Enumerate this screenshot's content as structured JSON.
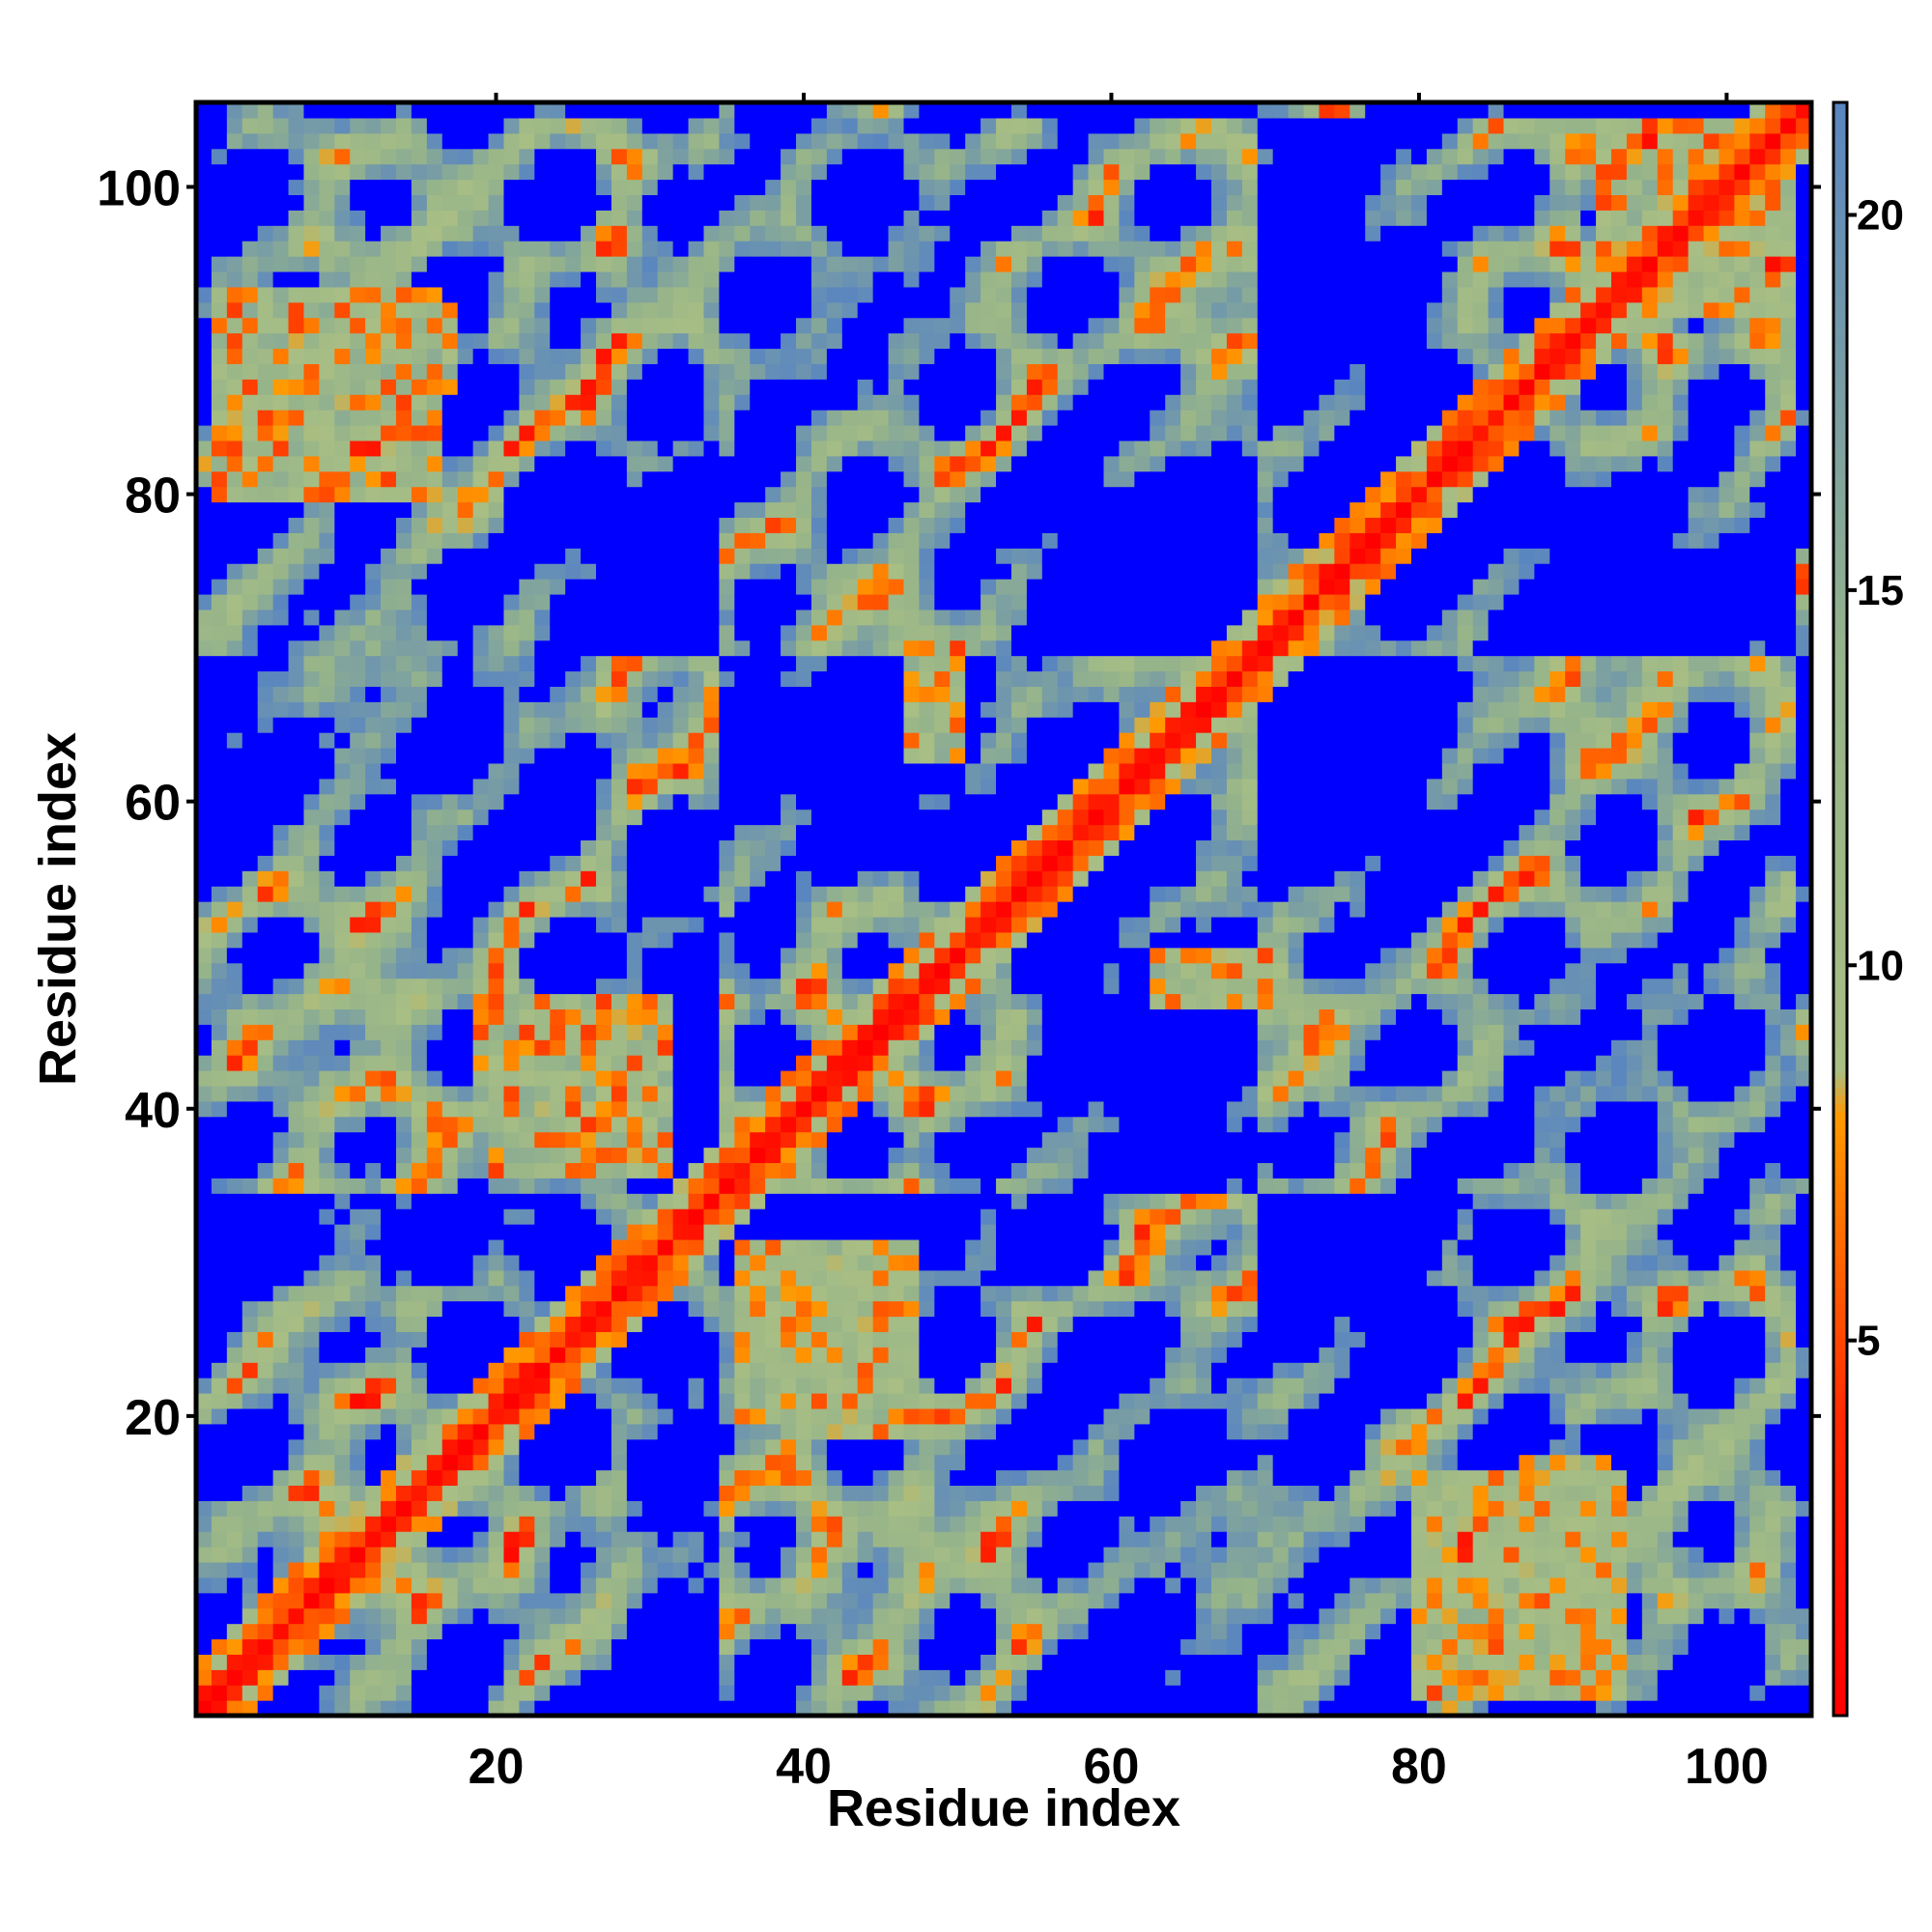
{
  "chart_data": {
    "type": "heatmap",
    "title": "",
    "xlabel": "Residue index",
    "ylabel": "Residue index",
    "n_residues": 105,
    "xlim": [
      0.5,
      105.5
    ],
    "ylim": [
      0.5,
      105.5
    ],
    "x_ticks": [
      20,
      40,
      60,
      80,
      100
    ],
    "y_ticks": [
      20,
      40,
      60,
      80,
      100
    ],
    "colorbar": {
      "range": [
        0,
        21.5
      ],
      "ticks": [
        5,
        10,
        15,
        20
      ],
      "stops": [
        {
          "value": 0,
          "color": "#ff0000"
        },
        {
          "value": 4,
          "color": "#ff2a00"
        },
        {
          "value": 8,
          "color": "#ff9900"
        },
        {
          "value": 8.6,
          "color": "#a8be84"
        },
        {
          "value": 14,
          "color": "#96b48a"
        },
        {
          "value": 21.5,
          "color": "#5a86c0"
        }
      ],
      "cutoff_value": 21.5,
      "cutoff_color": "#0000ff"
    },
    "contact_regions": [
      {
        "x": [
          2,
          104
        ],
        "y_offset": 0,
        "note": "diagonal"
      },
      {
        "x": [
          20,
          31
        ],
        "y": [
          36,
          47
        ]
      },
      {
        "x": [
          41,
          47
        ],
        "y": [
          19,
          27
        ]
      },
      {
        "x": [
          2,
          16
        ],
        "y": [
          80,
          93
        ]
      },
      {
        "x": [
          87,
          92
        ],
        "y": [
          10,
          17
        ]
      },
      {
        "x": [
          47,
          50
        ],
        "y": [
          63,
          71
        ]
      },
      {
        "x": [
          93,
          104
        ],
        "y": [
          92,
          104
        ]
      }
    ]
  }
}
